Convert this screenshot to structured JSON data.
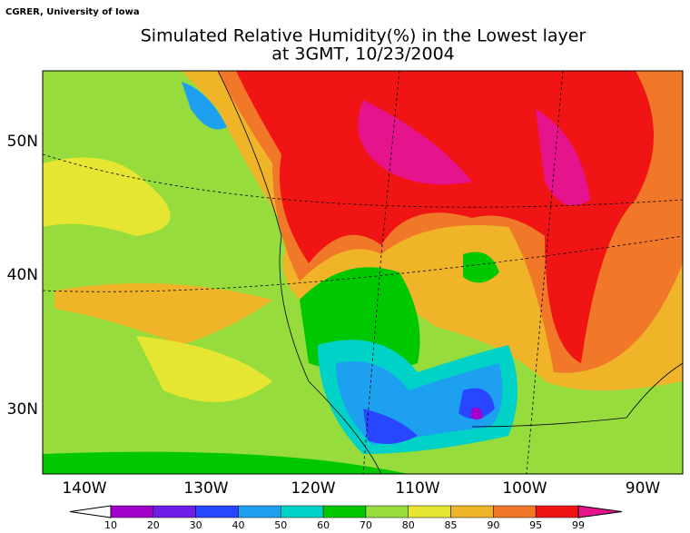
{
  "header": {
    "credit": "CGRER, University of Iowa",
    "title": "Simulated Relative Humidity(%) in the Lowest layer",
    "subtitle": "at 3GMT, 10/23/2004"
  },
  "map": {
    "lon_labels": [
      "140W",
      "130W",
      "120W",
      "110W",
      "100W",
      "90W"
    ],
    "lat_labels": [
      "50N",
      "40N",
      "30N"
    ]
  },
  "colorbar": {
    "levels": [
      10,
      20,
      30,
      40,
      50,
      60,
      70,
      80,
      85,
      90,
      95,
      99
    ],
    "colors": [
      "#ffffff",
      "#a000c8",
      "#6e1ee6",
      "#2846ff",
      "#1ea0f0",
      "#00d2c8",
      "#00c800",
      "#96dc3c",
      "#e6e632",
      "#f0b428",
      "#f07828",
      "#f01414",
      "#e6148c"
    ]
  }
}
